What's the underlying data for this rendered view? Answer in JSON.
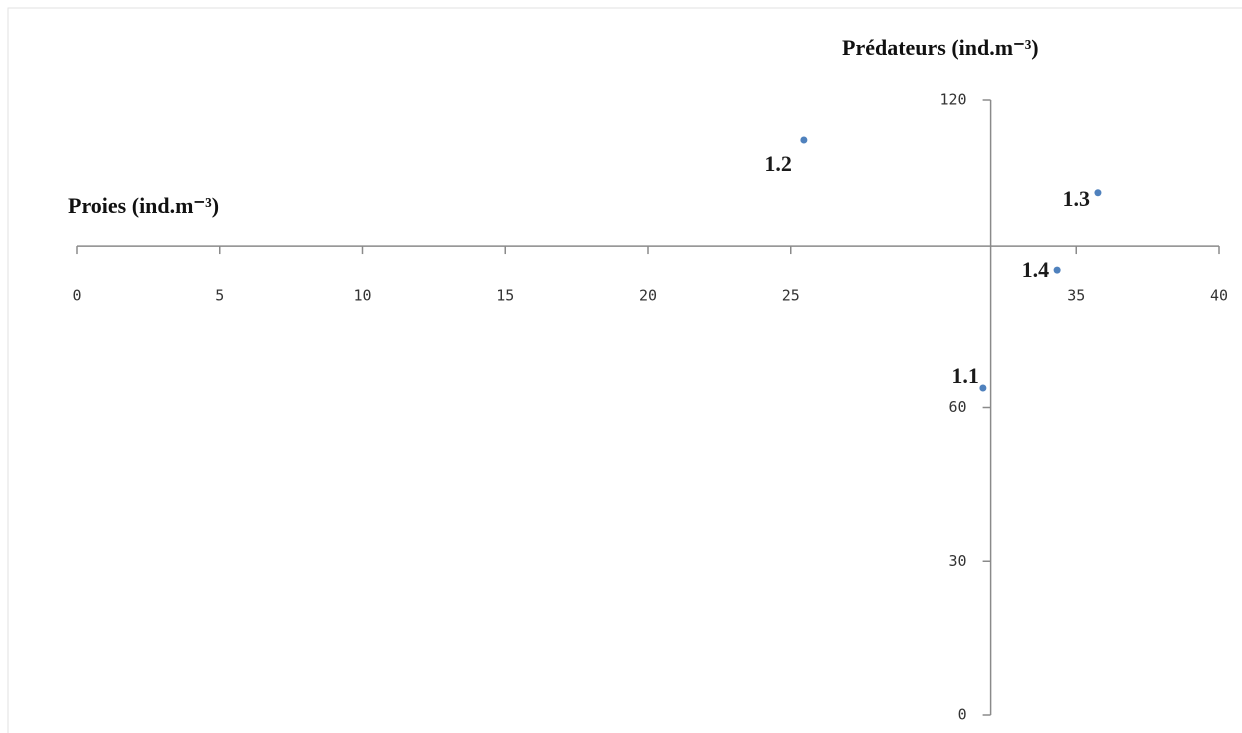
{
  "chart_data": {
    "type": "scatter",
    "x_label": "Proies (ind.m⁻³)",
    "y_label": "Prédateurs (ind.m⁻³)",
    "x": [
      31.73,
      25.46,
      35.76,
      34.33
    ],
    "values": [
      63.8,
      112.2,
      101.9,
      86.8
    ],
    "labels": [
      "1.1",
      "1.2",
      "1.3",
      "1.4"
    ],
    "color": "#4f81bd",
    "xlim": [
      0,
      40
    ],
    "xticks": [
      0,
      5,
      10,
      15,
      20,
      25,
      35,
      40
    ],
    "ylim": [
      0,
      120
    ],
    "yticks": [
      0,
      30,
      60,
      120
    ],
    "x_axis_at": 91.5,
    "y_axis_at": 32
  }
}
